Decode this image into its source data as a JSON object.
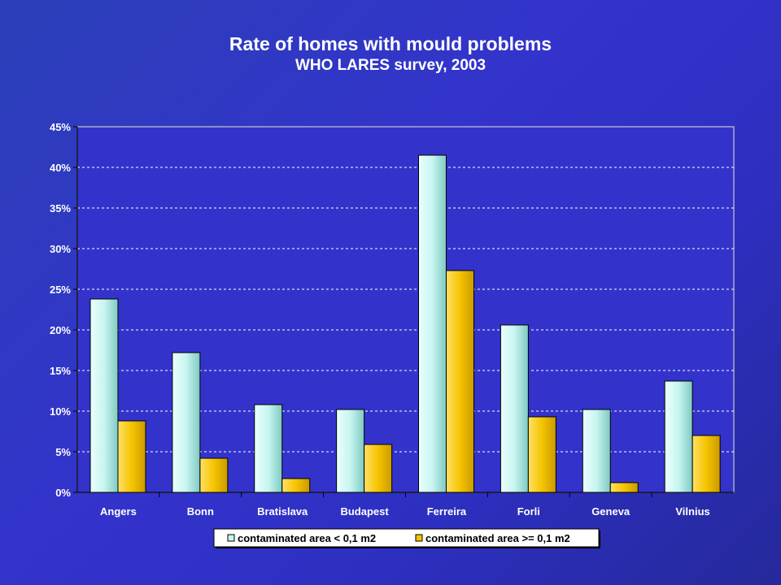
{
  "chart_data": {
    "type": "bar",
    "title": "Rate of homes with mould problems",
    "subtitle": "WHO LARES survey, 2003",
    "categories": [
      "Angers",
      "Bonn",
      "Bratislava",
      "Budapest",
      "Ferreira",
      "Forli",
      "Geneva",
      "Vilnius"
    ],
    "series": [
      {
        "name": "contaminated area < 0,1 m2",
        "color": "#c8f5f0",
        "values": [
          23.8,
          17.2,
          10.8,
          10.2,
          41.5,
          20.6,
          10.2,
          13.7
        ]
      },
      {
        "name": "contaminated area >= 0,1 m2",
        "color": "#f5c400",
        "values": [
          8.8,
          4.2,
          1.7,
          5.9,
          27.3,
          9.3,
          1.2,
          7.0
        ]
      }
    ],
    "y_ticks": [
      "0%",
      "5%",
      "10%",
      "15%",
      "20%",
      "25%",
      "30%",
      "35%",
      "40%",
      "45%"
    ],
    "ylim": [
      0,
      45
    ],
    "y_unit": "%",
    "grid": true,
    "grid_style": "dashed",
    "legend_position": "bottom",
    "plot_background": "#3333cc",
    "text_color": "#ffffff"
  }
}
